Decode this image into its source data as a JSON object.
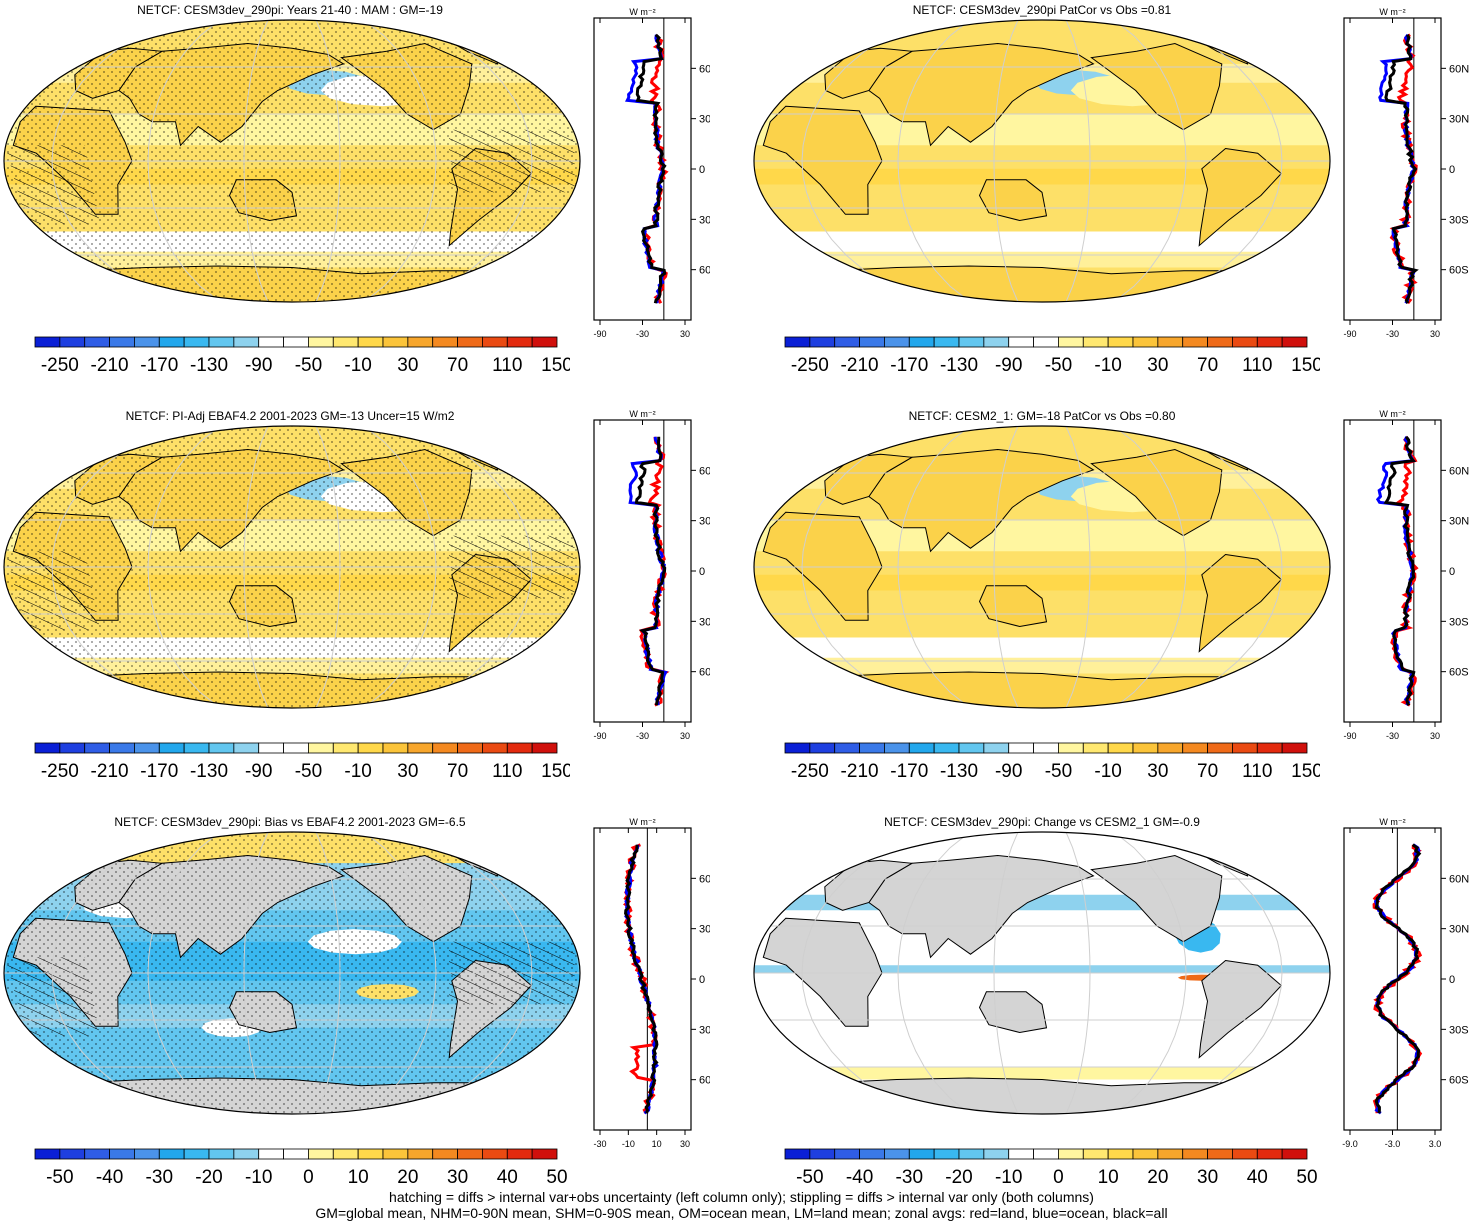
{
  "panels": [
    {
      "title": "NETCF: CESM3dev_290pi: Years 21-40 : MAM : GM=-19",
      "variant": "a",
      "stipple": true,
      "hatch": true
    },
    {
      "title": "NETCF: CESM3dev_290pi PatCor vs Obs =0.81",
      "variant": "b",
      "stipple": false,
      "hatch": false
    },
    {
      "title": "NETCF: PI-Adj EBAF4.2 2001-2023 GM=-13 Uncer=15 W/m2",
      "variant": "a",
      "stipple": true,
      "hatch": true
    },
    {
      "title": "NETCF: CESM2_1: GM=-18 PatCor vs Obs =0.80",
      "variant": "b",
      "stipple": false,
      "hatch": false
    },
    {
      "title": "NETCF: CESM3dev_290pi: Bias vs EBAF4.2 2001-2023 GM=-6.5",
      "variant": "c",
      "stipple": true,
      "hatch": true
    },
    {
      "title": "NETCF: CESM3dev_290pi: Change vs CESM2_1 GM=-0.9",
      "variant": "d",
      "stipple": false,
      "hatch": false
    }
  ],
  "zonal": {
    "unit": "W m⁻²",
    "lat_labels": [
      "60N",
      "30N",
      "0",
      "30S",
      "60S"
    ],
    "xticks_abs": [
      "-90",
      "-30",
      "30"
    ],
    "xticks_bias": [
      "-30",
      "-10",
      "10",
      "30"
    ],
    "xticks_change": [
      "-9.0",
      "-3.0",
      "3.0"
    ],
    "series_colors": {
      "land": "#ff0000",
      "ocean": "#0000ff",
      "all": "#000000"
    }
  },
  "colorbars": {
    "abs": {
      "labels": [
        "-250",
        "-210",
        "-170",
        "-130",
        "-90",
        "-50",
        "-10",
        "30",
        "70",
        "110",
        "150"
      ],
      "colors": [
        "#0a1fd6",
        "#1e3fe0",
        "#2f5de6",
        "#3a79e8",
        "#4b93ea",
        "#22a7ec",
        "#39b8f0",
        "#62c6ef",
        "#8ed2ee",
        "#ffffff",
        "#ffffff",
        "#fff6a0",
        "#ffe870",
        "#ffd84a",
        "#fbc43a",
        "#f7a62c",
        "#f48920",
        "#ef6a18",
        "#ea4a12",
        "#e32a0e",
        "#d0100c"
      ]
    },
    "diff": {
      "labels": [
        "-50",
        "-40",
        "-30",
        "-20",
        "-10",
        "0",
        "10",
        "20",
        "30",
        "40",
        "50"
      ],
      "colors": [
        "#0a1fd6",
        "#1e3fe0",
        "#2f5de6",
        "#3a79e8",
        "#4b93ea",
        "#22a7ec",
        "#39b8f0",
        "#62c6ef",
        "#8ed2ee",
        "#ffffff",
        "#ffffff",
        "#fff6a0",
        "#ffe870",
        "#ffd84a",
        "#fbc43a",
        "#f7a62c",
        "#f48920",
        "#ef6a18",
        "#ea4a12",
        "#e32a0e",
        "#d0100c"
      ]
    }
  },
  "footer": {
    "line1": "hatching = diffs > internal var+obs uncertainty (left column only); stippling = diffs > internal var only (both columns)",
    "line2": "GM=global mean, NHM=0-90N mean, SHM=0-90S mean, OM=ocean mean, LM=land mean; zonal avgs: red=land, blue=ocean, black=all"
  }
}
